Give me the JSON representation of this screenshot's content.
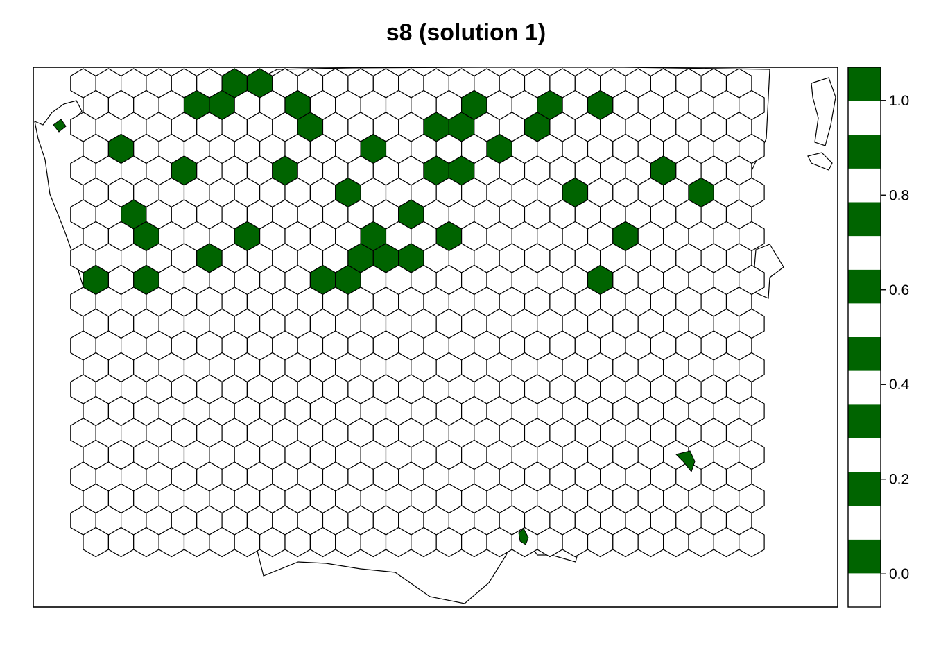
{
  "title": "s8 (solution 1)",
  "colors": {
    "selected": "#006400",
    "unselected": "#ffffff",
    "outline": "#000000"
  },
  "grid": {
    "columns": 31,
    "rows": 22,
    "selected_cells": [
      [
        0,
        6
      ],
      [
        0,
        7
      ],
      [
        1,
        4
      ],
      [
        1,
        5
      ],
      [
        1,
        8
      ],
      [
        1,
        15
      ],
      [
        1,
        18
      ],
      [
        1,
        20
      ],
      [
        2,
        9
      ],
      [
        2,
        14
      ],
      [
        2,
        15
      ],
      [
        2,
        18
      ],
      [
        3,
        1
      ],
      [
        3,
        11
      ],
      [
        3,
        16
      ],
      [
        4,
        4
      ],
      [
        4,
        8
      ],
      [
        4,
        14
      ],
      [
        4,
        15
      ],
      [
        4,
        23
      ],
      [
        5,
        10
      ],
      [
        5,
        19
      ],
      [
        5,
        24
      ],
      [
        6,
        2
      ],
      [
        6,
        13
      ],
      [
        7,
        2
      ],
      [
        7,
        6
      ],
      [
        7,
        11
      ],
      [
        7,
        14
      ],
      [
        7,
        21
      ],
      [
        8,
        5
      ],
      [
        8,
        11
      ],
      [
        8,
        12
      ],
      [
        8,
        13
      ],
      [
        9,
        0
      ],
      [
        9,
        2
      ],
      [
        9,
        9
      ],
      [
        9,
        10
      ],
      [
        9,
        20
      ]
    ]
  },
  "colorbar": {
    "ticks": [
      "0.0",
      "0.2",
      "0.4",
      "0.6",
      "0.8",
      "1.0"
    ],
    "tick_values": [
      0.0,
      0.2,
      0.4,
      0.6,
      0.8,
      1.0
    ],
    "range": [
      -0.07,
      1.07
    ],
    "stripes": 16
  },
  "islands": [
    {
      "name": "small-island-north-west",
      "selected": true
    },
    {
      "name": "small-island-south-east",
      "selected": true
    },
    {
      "name": "small-island-south",
      "selected": true
    }
  ]
}
